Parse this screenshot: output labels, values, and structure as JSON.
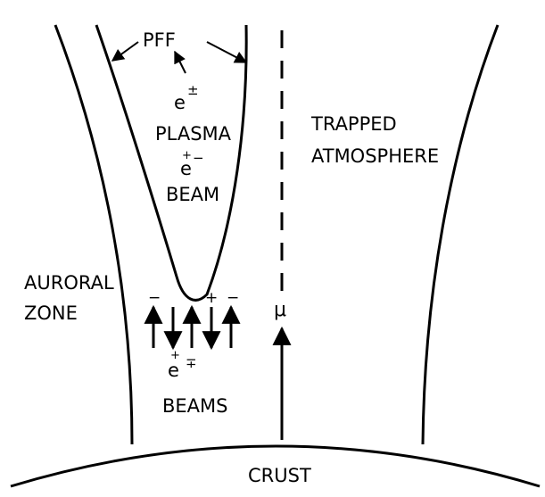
{
  "labels": {
    "pff": "PFF",
    "e_pm": "e",
    "e_pm_sup": "±",
    "plasma": "PLASMA",
    "e_beam": "e",
    "e_beam_plus": "+",
    "e_beam_minus": "−",
    "beam": "BEAM",
    "trapped": "TRAPPED",
    "atmosphere": "ATMOSPHERE",
    "auroral": "AURORAL",
    "zone": "ZONE",
    "mu": "μ",
    "e_beams": "e",
    "e_beams_plus": "+",
    "e_beams_sub": "∓",
    "beams": "BEAMS",
    "crust": "CRUST",
    "sign_1": "−",
    "sign_2": "+",
    "sign_3": "−"
  },
  "colors": {
    "ink": "#000000",
    "background": "#ffffff"
  }
}
